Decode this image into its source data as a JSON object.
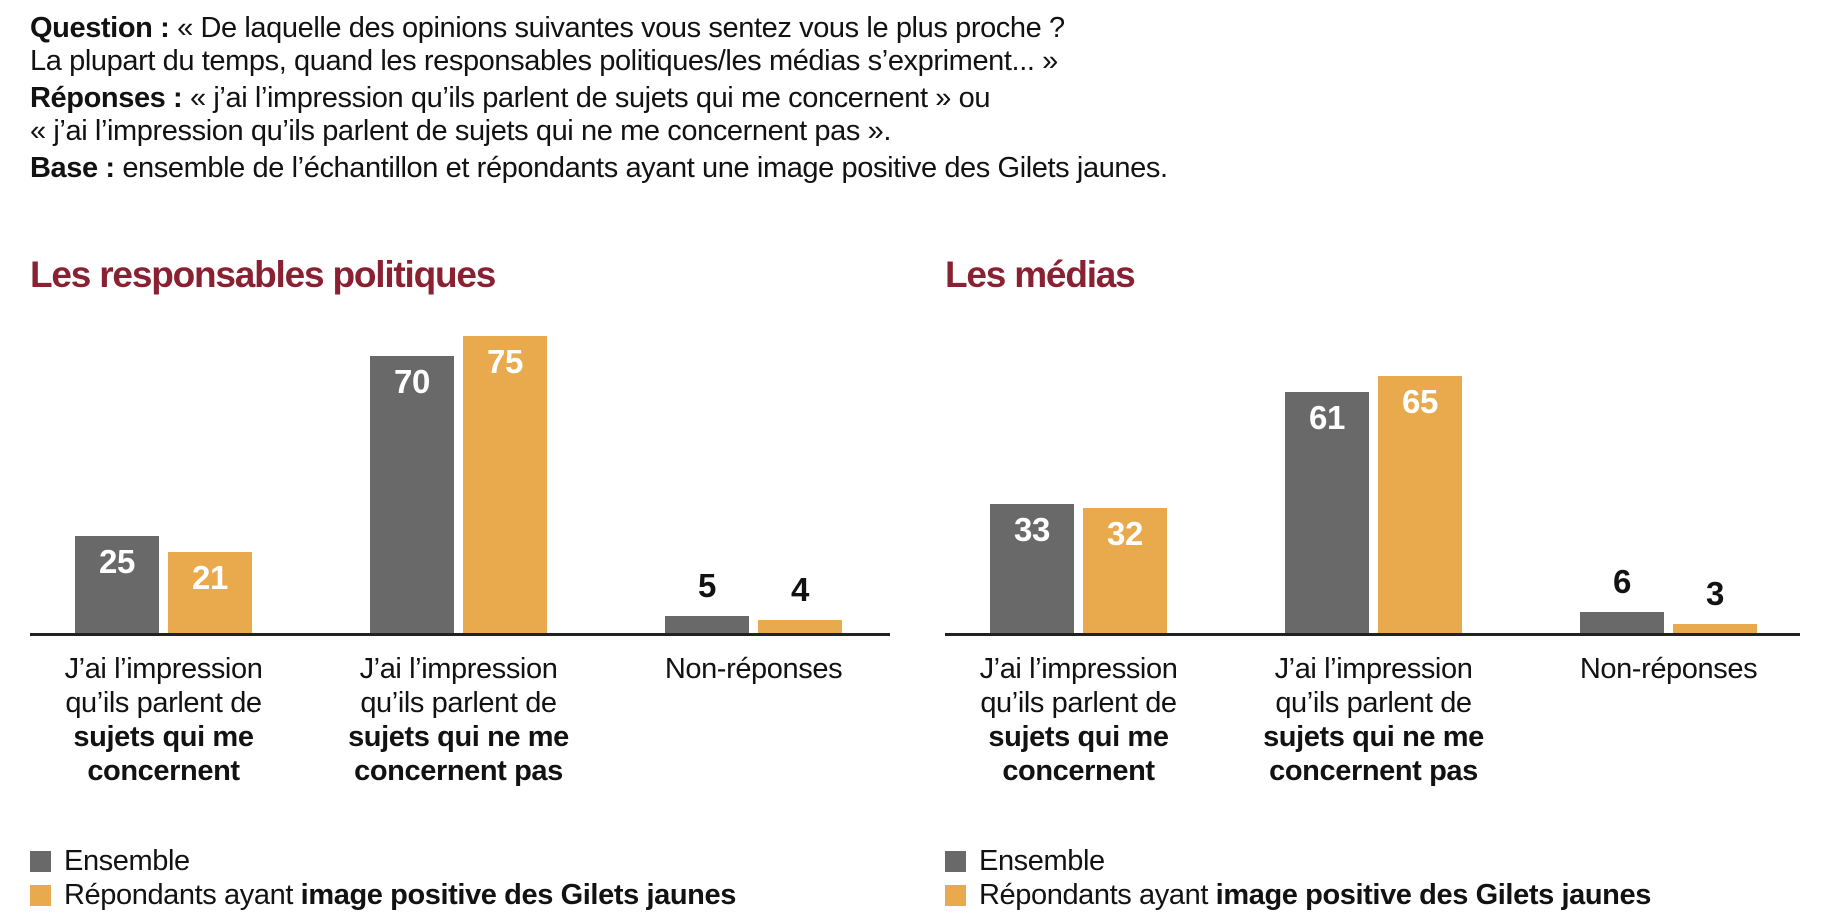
{
  "header": {
    "q_label": "Question :",
    "q_text": "« De laquelle des opinions suivantes vous sentez vous le plus proche ?",
    "q_line2": "La plupart du temps, quand les responsables politiques/les médias s’expriment... »",
    "r_label": "Réponses :",
    "r_text": "« j’ai l’impression qu’ils parlent de sujets qui me concernent » ou",
    "r_line2": "« j’ai l’impression qu’ils parlent de sujets qui ne me concernent pas ».",
    "b_label": "Base :",
    "b_text": "ensemble de l’échantillon et répondants ayant une image positive des Gilets jaunes."
  },
  "colors": {
    "bar_gray": "#696969",
    "bar_orange": "#e9a94d",
    "title_maroon": "#8a2132",
    "axis": "#222222",
    "text": "#121212",
    "value_inside": "#ffffff"
  },
  "legend": {
    "items": [
      {
        "text": "Ensemble",
        "bold": ""
      },
      {
        "text": "Répondants ayant",
        "bold": "image positive des Gilets jaunes"
      }
    ]
  },
  "chart_data": [
    {
      "type": "bar",
      "title": "Les responsables politiques",
      "categories": [
        {
          "lines": [
            {
              "text": "J’ai l’impression",
              "bold": false
            },
            {
              "text": "qu’ils parlent de",
              "bold": false
            },
            {
              "text": "sujets qui me",
              "bold": true
            },
            {
              "text": "concernent",
              "bold": true
            }
          ]
        },
        {
          "lines": [
            {
              "text": "J’ai l’impression",
              "bold": false
            },
            {
              "text": "qu’ils parlent de",
              "bold": false
            },
            {
              "text": "sujets qui ne me",
              "bold": true
            },
            {
              "text": "concernent pas",
              "bold": true
            }
          ]
        },
        {
          "lines": [
            {
              "text": "Non-réponses",
              "bold": false
            }
          ]
        }
      ],
      "series": [
        {
          "name": "Ensemble",
          "values": [
            25,
            70,
            5
          ]
        },
        {
          "name": "Répondants ayant image positive des Gilets jaunes",
          "values": [
            21,
            75,
            4
          ]
        }
      ],
      "ylim": [
        0,
        80
      ],
      "grid": false,
      "legend_position": "bottom-left"
    },
    {
      "type": "bar",
      "title": "Les médias",
      "categories": [
        {
          "lines": [
            {
              "text": "J’ai l’impression",
              "bold": false
            },
            {
              "text": "qu’ils parlent de",
              "bold": false
            },
            {
              "text": "sujets qui me",
              "bold": true
            },
            {
              "text": "concernent",
              "bold": true
            }
          ]
        },
        {
          "lines": [
            {
              "text": "J’ai l’impression",
              "bold": false
            },
            {
              "text": "qu’ils parlent de",
              "bold": false
            },
            {
              "text": "sujets qui ne me",
              "bold": true
            },
            {
              "text": "concernent pas",
              "bold": true
            }
          ]
        },
        {
          "lines": [
            {
              "text": "Non-réponses",
              "bold": false
            }
          ]
        }
      ],
      "series": [
        {
          "name": "Ensemble",
          "values": [
            33,
            61,
            6
          ]
        },
        {
          "name": "Répondants ayant image positive des Gilets jaunes",
          "values": [
            32,
            65,
            3
          ]
        }
      ],
      "ylim": [
        0,
        80
      ],
      "grid": false,
      "legend_position": "bottom-left"
    }
  ]
}
